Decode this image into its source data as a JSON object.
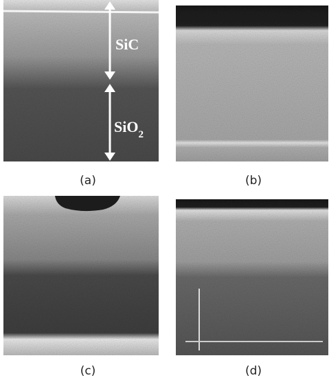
{
  "panels": [
    {
      "label": "(a)"
    },
    {
      "label": "(b)"
    },
    {
      "label": "(c)"
    },
    {
      "label": "(d)"
    }
  ],
  "annotations": [
    {
      "text": "SiC"
    },
    {
      "text": "SiO",
      "subscript": "2"
    }
  ]
}
